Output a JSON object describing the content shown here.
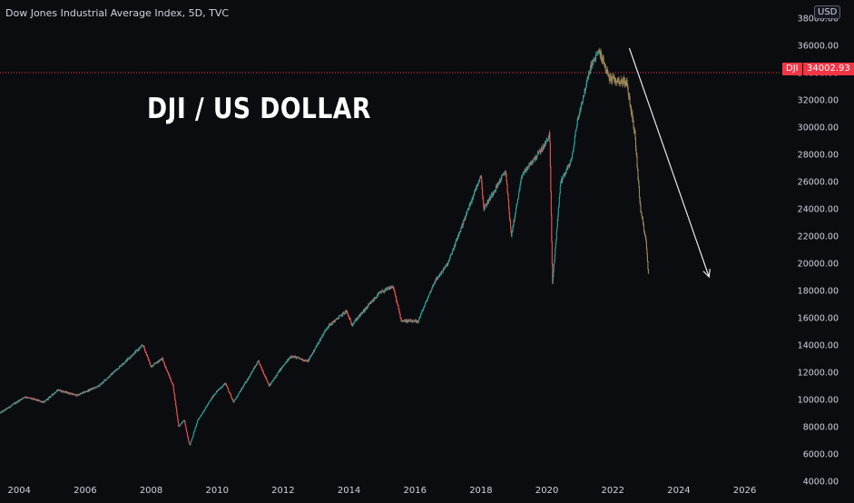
{
  "header": {
    "title": "Dow Jones Industrial Average Index, 5D, TVC"
  },
  "annotation": {
    "text": "DJI / US DOLLAR"
  },
  "price_scale": {
    "currency": "USD"
  },
  "last_price": {
    "symbol": "DJI",
    "value": "34002.93",
    "color": "#f23645"
  },
  "colors": {
    "background": "#0b0c10",
    "up": "#26a69a",
    "down": "#ef5350",
    "projection": "#a08a5a",
    "axis_text": "#d1d4dc",
    "arrow": "#e8e8e8"
  },
  "chart_data": {
    "type": "candlestick",
    "title": "Dow Jones Industrial Average Index, 5D, TVC",
    "ylim": [
      4000,
      38000
    ],
    "xlim": [
      "2003-06",
      "2027-02"
    ],
    "x_tick_labels": [
      "2004",
      "2006",
      "2008",
      "2010",
      "2012",
      "2014",
      "2016",
      "2018",
      "2020",
      "2022",
      "2024",
      "2026"
    ],
    "y_tick_labels": [
      "4000.00",
      "6000.00",
      "8000.00",
      "10000.00",
      "12000.00",
      "14000.00",
      "16000.00",
      "18000.00",
      "20000.00",
      "22000.00",
      "24000.00",
      "26000.00",
      "28000.00",
      "30000.00",
      "32000.00",
      "34000.00",
      "36000.00",
      "38000.00"
    ],
    "price_path": [
      [
        "2003-06",
        9000
      ],
      [
        "2004-03",
        10200
      ],
      [
        "2004-10",
        9800
      ],
      [
        "2005-03",
        10700
      ],
      [
        "2005-10",
        10300
      ],
      [
        "2006-06",
        11000
      ],
      [
        "2007-02",
        12500
      ],
      [
        "2007-10",
        14000
      ],
      [
        "2008-01",
        12400
      ],
      [
        "2008-05",
        13000
      ],
      [
        "2008-09",
        11000
      ],
      [
        "2008-11",
        8000
      ],
      [
        "2009-01",
        8500
      ],
      [
        "2009-03",
        6600
      ],
      [
        "2009-06",
        8500
      ],
      [
        "2009-12",
        10400
      ],
      [
        "2010-04",
        11200
      ],
      [
        "2010-07",
        9800
      ],
      [
        "2011-04",
        12800
      ],
      [
        "2011-08",
        11000
      ],
      [
        "2011-12",
        12200
      ],
      [
        "2012-04",
        13200
      ],
      [
        "2012-10",
        12800
      ],
      [
        "2013-05",
        15300
      ],
      [
        "2013-12",
        16500
      ],
      [
        "2014-02",
        15500
      ],
      [
        "2014-12",
        17800
      ],
      [
        "2015-05",
        18300
      ],
      [
        "2015-08",
        15800
      ],
      [
        "2016-02",
        15700
      ],
      [
        "2016-08",
        18600
      ],
      [
        "2017-01",
        20000
      ],
      [
        "2018-01",
        26500
      ],
      [
        "2018-02",
        24000
      ],
      [
        "2018-10",
        26800
      ],
      [
        "2018-12",
        22000
      ],
      [
        "2019-04",
        26500
      ],
      [
        "2019-07",
        27300
      ],
      [
        "2019-12",
        28600
      ],
      [
        "2020-02",
        29500
      ],
      [
        "2020-03",
        18500
      ],
      [
        "2020-06",
        26000
      ],
      [
        "2020-10",
        27600
      ],
      [
        "2020-12",
        30400
      ],
      [
        "2021-05",
        34500
      ],
      [
        "2021-08",
        35600
      ]
    ],
    "projection_path": [
      [
        "2021-08",
        35600
      ],
      [
        "2021-12",
        33500
      ],
      [
        "2022-06",
        33300
      ],
      [
        "2022-09",
        29500
      ],
      [
        "2022-11",
        24000
      ],
      [
        "2023-01",
        21800
      ],
      [
        "2023-02",
        19000
      ]
    ],
    "projection_arrow": {
      "from": [
        "2022-07",
        35800
      ],
      "to": [
        "2024-12",
        19000
      ]
    },
    "last_price_line": 34002.93,
    "annotation": "DJI / US DOLLAR"
  }
}
